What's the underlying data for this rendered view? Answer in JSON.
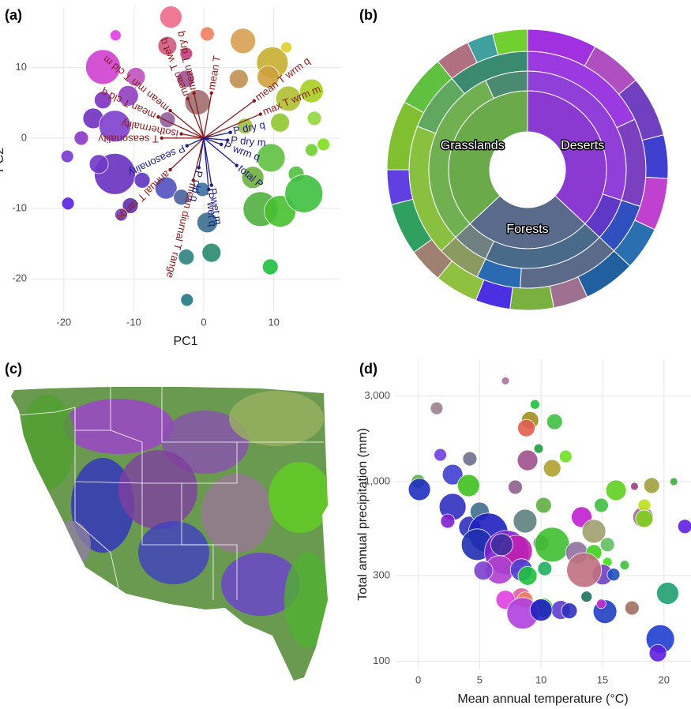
{
  "chart_data": [
    {
      "type": "biplot",
      "panel_label": "(a)",
      "x_label": "PC1",
      "y_label": "PC2",
      "xlim": [
        -24.6,
        19.4
      ],
      "ylim": [
        -24.7,
        18.5
      ],
      "xticks": [
        -20,
        -10,
        0,
        10
      ],
      "yticks": [
        -20,
        -10,
        0,
        10
      ],
      "grid": true,
      "points": {
        "x": [
          -4.7,
          0.5,
          -5.2,
          5.6,
          9.8,
          11.8,
          -12.6,
          -14.4,
          -9.7,
          -2.6,
          -2.5,
          -0.9,
          -10.8,
          -14.4,
          -15.8,
          -12.7,
          -17.5,
          -19.5,
          -12.7,
          -15.0,
          -8.8,
          -10.5,
          -11.8,
          -19.4,
          -5.4,
          -3.2,
          -0.2,
          0.5,
          -2.5,
          1.1,
          -2.4,
          9.6,
          15.4,
          13.2,
          8.1,
          10.9,
          14.3,
          17.1,
          9.5,
          7.0,
          12.1,
          15.4,
          10.9,
          5.9,
          15.8,
          5.0,
          9.2,
          -5.2
        ],
        "y": [
          17.2,
          14.8,
          13.1,
          13.8,
          10.7,
          12.9,
          14.6,
          10.1,
          8.7,
          8.4,
          12.0,
          5.1,
          6.0,
          5.4,
          2.8,
          1.7,
          0.0,
          -2.6,
          -5.1,
          -3.7,
          -6.0,
          -9.6,
          -10.9,
          -9.3,
          -7.1,
          -8.4,
          -7.3,
          -12.0,
          -16.9,
          -16.3,
          -23.0,
          -2.8,
          -1.7,
          -5.1,
          -10.1,
          -10.4,
          -7.9,
          -0.9,
          -18.3,
          -5.6,
          5.6,
          6.7,
          2.2,
          1.7,
          2.8,
          8.4,
          8.7,
          2.6
        ],
        "sizes": [
          14,
          9,
          12,
          16,
          20,
          7,
          7,
          22,
          12,
          11,
          8,
          16,
          13,
          11,
          13,
          20,
          9,
          8,
          26,
          12,
          10,
          10,
          8,
          8,
          14,
          10,
          9,
          13,
          10,
          12,
          8,
          18,
          8,
          10,
          22,
          20,
          24,
          8,
          10,
          14,
          16,
          15,
          12,
          10,
          9,
          12,
          14,
          10
        ],
        "colors": [
          "#f06a8a",
          "#f08060",
          "#d05a80",
          "#d8a050",
          "#c8b030",
          "#e0d030",
          "#e040e0",
          "#d040d0",
          "#c050c0",
          "#a05090",
          "#c04080",
          "#a07070",
          "#9040c0",
          "#8030c0",
          "#7030c0",
          "#8040d0",
          "#8a38c8",
          "#7838d0",
          "#6a30c0",
          "#7038c8",
          "#6035c0",
          "#6030b0",
          "#7040b8",
          "#5a20e0",
          "#5050c0",
          "#4a60a0",
          "#3a70a0",
          "#3a7090",
          "#2e8080",
          "#2a8a70",
          "#207a80",
          "#60c040",
          "#70d030",
          "#50c040",
          "#50b040",
          "#48c030",
          "#40c040",
          "#80e020",
          "#20c040",
          "#70b040",
          "#b0c030",
          "#a8d020",
          "#90c830",
          "#a0c040",
          "#90d840",
          "#c09050",
          "#d0a040",
          "#9060a0"
        ]
      },
      "loadings": {
        "labels": [
          "mean T",
          "mean T wrm q",
          "max T wrm m",
          "mean T dry q",
          "mean T wet q",
          "mean min T cld m",
          "mean T cld q",
          "isothermality",
          "T seasonality",
          "annual T range",
          "mean diurnal T range",
          "P dry q",
          "P dry m",
          "P wrm q",
          "P seasonality",
          "total P",
          "P wet m",
          "P wet q",
          "P cld q"
        ],
        "x": [
          1.1,
          7.2,
          8.1,
          -1.4,
          -2.3,
          -4.8,
          -6.5,
          -3.2,
          -6.0,
          -4.8,
          -1.5,
          3.8,
          3.4,
          2.5,
          -2.4,
          4.7,
          1.1,
          0.7,
          -0.7
        ],
        "y": [
          6.4,
          5.3,
          3.4,
          6.4,
          5.6,
          3.9,
          3.0,
          0.6,
          0.0,
          -4.5,
          -6.0,
          0.8,
          -0.3,
          -0.9,
          -1.1,
          -3.9,
          -6.7,
          -7.3,
          -4.2
        ],
        "colors": [
          "#8b1a1a",
          "#8b1a1a",
          "#8b1a1a",
          "#8b1a1a",
          "#8b1a1a",
          "#8b1a1a",
          "#8b1a1a",
          "#8b1a1a",
          "#8b1a1a",
          "#8b1a1a",
          "#8b1a1a",
          "#1a1a8b",
          "#1a1a8b",
          "#1a1a8b",
          "#1a1a8b",
          "#1a1a8b",
          "#1a1a8b",
          "#1a1a8b",
          "#1a1a8b"
        ]
      }
    },
    {
      "type": "sunburst",
      "panel_label": "(b)",
      "categories": [
        "Deserts",
        "Forests",
        "Grasslands"
      ],
      "values": [
        37,
        26,
        37
      ],
      "colors": [
        "#8a3ad0",
        "#5a6a8a",
        "#6aaa4a"
      ],
      "rings": [
        {
          "values": [
            30,
            7,
            20,
            6,
            30,
            7
          ],
          "colors": [
            "#9040d8",
            "#6038c8",
            "#4a6a8a",
            "#708080",
            "#70b050",
            "#4a8a70"
          ]
        },
        {
          "values": [
            18,
            12,
            7,
            14,
            6,
            6,
            18,
            8,
            11
          ],
          "colors": [
            "#9a3ae0",
            "#7a40c0",
            "#3050c0",
            "#5a6a88",
            "#2a6ab0",
            "#8a9a60",
            "#8ac040",
            "#60a860",
            "#3a8a70"
          ]
        },
        {
          "values": [
            8,
            6,
            7,
            5,
            6,
            5,
            6,
            4,
            5,
            4,
            5,
            4,
            6,
            4,
            8,
            6,
            4,
            3,
            4
          ],
          "colors": [
            "#a030e0",
            "#b050c0",
            "#7040c0",
            "#4040d0",
            "#c040d0",
            "#2a70b0",
            "#2060a0",
            "#a07090",
            "#7ab040",
            "#4a30e0",
            "#90c040",
            "#a08070",
            "#30a060",
            "#6040e0",
            "#80c030",
            "#60c040",
            "#b07080",
            "#40a0a0",
            "#70d030"
          ]
        }
      ]
    },
    {
      "type": "map",
      "panel_label": "(c)"
    },
    {
      "type": "scatter",
      "panel_label": "(d)",
      "x_label": "Mean annual temperature (°C)",
      "y_label": "Total annual precipitation (mm)",
      "xlim": [
        -1.9,
        22.2
      ],
      "ylim": [
        90,
        4800
      ],
      "log_y": true,
      "grid": true,
      "xticks": [
        0,
        5,
        10,
        15,
        20
      ],
      "yticks": [
        100,
        300,
        {
          "value": 1000,
          "label": "1,000"
        },
        {
          "value": 3000,
          "label": "3,000"
        }
      ],
      "x": [
        7.1,
        1.5,
        9.5,
        9.1,
        8.8,
        11.1,
        9.8,
        1.8,
        4.2,
        8.9,
        12.0,
        10.9,
        0.0,
        2.8,
        4.1,
        0.1,
        7.9,
        10.2,
        13.3,
        16.1,
        14.9,
        17.6,
        19.0,
        20.8,
        18.3,
        21.7,
        18.4,
        18.4,
        2.8,
        4.2,
        2.4,
        5.0,
        5.7,
        4.8,
        7.2,
        8.0,
        8.7,
        10.0,
        10.9,
        14.3,
        12.9,
        14.3,
        15.4,
        15.4,
        16.8,
        15.0,
        15.9,
        13.5,
        6.6,
        8.4,
        6.8,
        10.3,
        5.3,
        8.9,
        13.7,
        8.4,
        8.7,
        7.1,
        10.2,
        11.6,
        12.3,
        8.5,
        15.2,
        14.9,
        17.4,
        20.3,
        19.7,
        19.5,
        10.0
      ],
      "y": [
        3640,
        2560,
        2690,
        2196,
        1987,
        2155,
        1527,
        1410,
        1340,
        1314,
        1381,
        1187,
        1000,
        1095,
        951,
        904,
        932,
        739,
        635,
        895,
        739,
        941,
        951,
        1000,
        635,
        563,
        739,
        622,
        724,
        557,
        603,
        681,
        519,
        446,
        403,
        411,
        603,
        455,
        446,
        529,
        403,
        403,
        446,
        357,
        343,
        304,
        304,
        322,
        323,
        323,
        446,
        328,
        320,
        299,
        229,
        227,
        220,
        220,
        199,
        193,
        191,
        185,
        189,
        209,
        198,
        239,
        133,
        111,
        193
      ],
      "sizes": [
        5,
        8,
        6,
        11,
        11,
        10,
        6,
        8,
        9,
        13,
        8,
        11,
        9,
        13,
        14,
        14,
        9,
        10,
        13,
        13,
        9,
        5,
        10,
        5,
        13,
        9,
        8,
        11,
        17,
        14,
        9,
        12,
        25,
        20,
        28,
        20,
        15,
        10,
        22,
        15,
        14,
        10,
        9,
        6,
        6,
        13,
        8,
        22,
        18,
        14,
        14,
        9,
        12,
        12,
        7,
        12,
        10,
        12,
        12,
        12,
        10,
        20,
        15,
        6,
        9,
        14,
        18,
        11,
        14
      ],
      "colors": [
        "#b070a0",
        "#a08090",
        "#20c040",
        "#a09020",
        "#e06050",
        "#40c040",
        "#20a040",
        "#7040e0",
        "#707090",
        "#a05090",
        "#70e020",
        "#b0a030",
        "#60b040",
        "#4040d0",
        "#40c020",
        "#2030c0",
        "#906090",
        "#60b040",
        "#c020d0",
        "#60d020",
        "#40c040",
        "#a04080",
        "#a0a040",
        "#40b040",
        "#a07090",
        "#6020e0",
        "#c0e020",
        "#80d020",
        "#3030c0",
        "#3030c0",
        "#8020d0",
        "#407090",
        "#2020c0",
        "#2030b0",
        "#8020d0",
        "#c020b0",
        "#608080",
        "#707080",
        "#40c030",
        "#a0a070",
        "#9070a0",
        "#40d020",
        "#60c060",
        "#40e020",
        "#40c040",
        "#7040c0",
        "#2050c0",
        "#c07080",
        "#b040d0",
        "#5040d0",
        "#4030a0",
        "#20b060",
        "#8040d0",
        "#20c040",
        "#207060",
        "#e060a0",
        "#f08060",
        "#e040e0",
        "#40c040",
        "#6040d0",
        "#3030c0",
        "#b040e0",
        "#2040c0",
        "#c030d0",
        "#a07060",
        "#20a070",
        "#2040d0",
        "#6020e0",
        "#2020c0"
      ]
    }
  ]
}
